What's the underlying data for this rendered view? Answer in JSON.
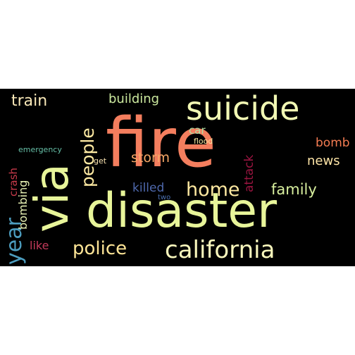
{
  "wordcloud": {
    "background_color": "#000000",
    "words": [
      {
        "text": "fire",
        "color": "#f47e5e"
      },
      {
        "text": "disaster",
        "color": "#e8f59a"
      },
      {
        "text": "via",
        "color": "#e8f59a"
      },
      {
        "text": "suicide",
        "color": "#f2f8b4"
      },
      {
        "text": "california",
        "color": "#f8f6bc"
      },
      {
        "text": "people",
        "color": "#fde9a2"
      },
      {
        "text": "home",
        "color": "#fde8a0"
      },
      {
        "text": "police",
        "color": "#fde496"
      },
      {
        "text": "year",
        "color": "#4d9ec0"
      },
      {
        "text": "family",
        "color": "#d8ef9e"
      },
      {
        "text": "train",
        "color": "#f9e8b8"
      },
      {
        "text": "building",
        "color": "#cbe89e"
      },
      {
        "text": "storm",
        "color": "#f8a867"
      },
      {
        "text": "news",
        "color": "#fde4a6"
      },
      {
        "text": "bomb",
        "color": "#f47c52"
      },
      {
        "text": "attack",
        "color": "#9a1540"
      },
      {
        "text": "killed",
        "color": "#4f69ad"
      },
      {
        "text": "crash",
        "color": "#c83a4a"
      },
      {
        "text": "bombing",
        "color": "#e8f2b4"
      },
      {
        "text": "like",
        "color": "#c23a5a"
      },
      {
        "text": "car",
        "color": "#b1dfa3"
      },
      {
        "text": "flood",
        "color": "#fbe9a2"
      },
      {
        "text": "emergency",
        "color": "#66bea6"
      },
      {
        "text": "get",
        "color": "#f8e2b0"
      },
      {
        "text": "two",
        "color": "#4a6fb0"
      }
    ]
  }
}
